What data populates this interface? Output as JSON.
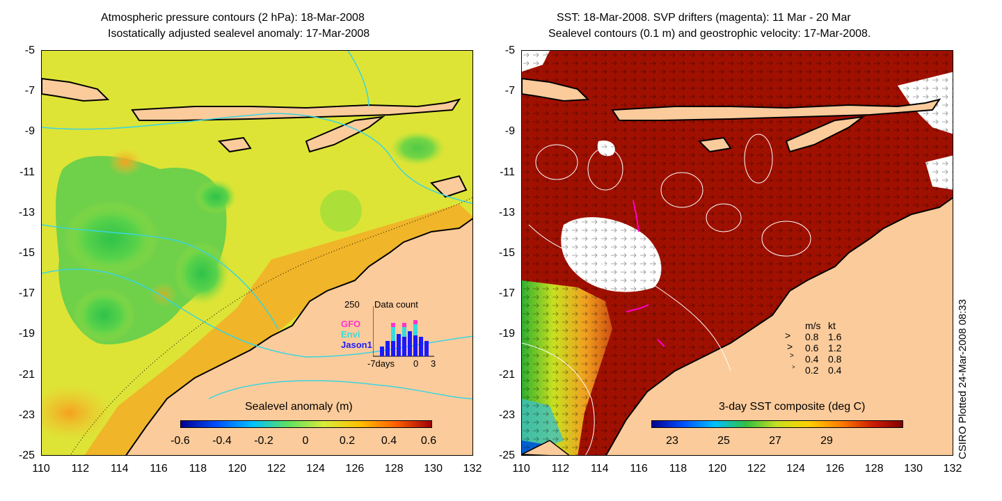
{
  "left_map": {
    "title_line1": "Atmospheric pressure contours (2 hPa): 18-Mar-2008",
    "title_line2": "Isostatically adjusted sealevel anomaly: 17-Mar-2008",
    "colorbar_title": "Sealevel anomaly (m)",
    "colorbar_ticks": [
      "-0.6",
      "-0.4",
      "-0.2",
      "0",
      "0.2",
      "0.4",
      "0.6"
    ],
    "inset": {
      "max_label": "250",
      "title": "Data count",
      "series": [
        "GFO",
        "Envi",
        "Jason1"
      ],
      "series_colors": [
        "#ff33cc",
        "#33dddd",
        "#1a1aff"
      ],
      "x_ticks": [
        "-7days",
        "0",
        "3"
      ]
    }
  },
  "right_map": {
    "title_line1": "SST: 18-Mar-2008. SVP drifters (magenta): 11 Mar - 20 Mar",
    "title_line2": "Sealevel contours (0.1 m) and geostrophic velocity: 17-Mar-2008.",
    "colorbar_title": "3-day SST composite (deg C)",
    "colorbar_ticks": [
      "23",
      "25",
      "27",
      "29"
    ],
    "velocity_legend": {
      "header_ms": "m/s",
      "header_kt": "kt",
      "rows": [
        {
          "ms": "0.8",
          "kt": "1.6"
        },
        {
          "ms": "0.6",
          "kt": "1.2"
        },
        {
          "ms": "0.4",
          "kt": "0.8"
        },
        {
          "ms": "0.2",
          "kt": "0.4"
        }
      ]
    }
  },
  "axes": {
    "y_ticks": [
      "-5",
      "-7",
      "-9",
      "-11",
      "-13",
      "-15",
      "-17",
      "-19",
      "-21",
      "-23",
      "-25"
    ],
    "x_ticks": [
      "110",
      "112",
      "114",
      "116",
      "118",
      "120",
      "122",
      "124",
      "126",
      "128",
      "130",
      "132"
    ]
  },
  "footer_text": "CSIRO Plotted 24-Mar-2008 08:33",
  "colors": {
    "land": "#fbcb9b",
    "sla_background": "#d8ec3a",
    "sst_warm": "#a01000",
    "contour_cyan": "#3bd4e0"
  }
}
